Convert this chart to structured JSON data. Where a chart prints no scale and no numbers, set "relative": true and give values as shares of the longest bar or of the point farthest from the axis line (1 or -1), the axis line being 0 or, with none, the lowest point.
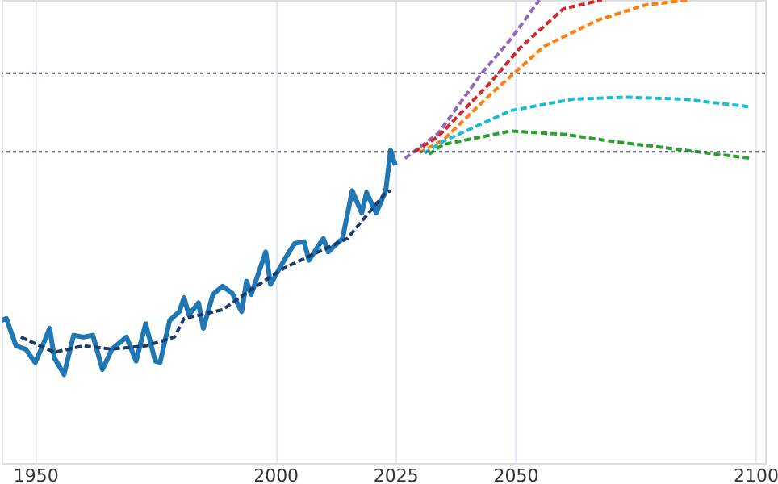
{
  "chart_data": {
    "type": "line",
    "relative": true,
    "xlim": [
      1943,
      2102
    ],
    "xticks": [
      1950,
      2000,
      2025,
      2050,
      2100
    ],
    "grid": true,
    "legend": false,
    "marker": "none",
    "series": [
      {
        "color": "#1f77b4",
        "line_style": "solid",
        "x": [
          1943,
          1944,
          1946,
          1948,
          1950,
          1952,
          1953,
          1954,
          1956,
          1958,
          1960,
          1962,
          1964,
          1966,
          1969,
          1971,
          1973,
          1975,
          1976,
          1978,
          1980,
          1981,
          1982,
          1984,
          1985,
          1987,
          1989,
          1991,
          1993,
          1994,
          1995,
          1998,
          1999,
          2002,
          2004,
          2006,
          2007,
          2010,
          2011,
          2014,
          2016,
          2018,
          2019,
          2021,
          2023,
          2024,
          2025
        ],
        "values": [
          0.308,
          0.312,
          0.253,
          0.246,
          0.217,
          0.265,
          0.291,
          0.227,
          0.191,
          0.276,
          0.272,
          0.276,
          0.202,
          0.246,
          0.272,
          0.22,
          0.301,
          0.22,
          0.217,
          0.308,
          0.327,
          0.357,
          0.32,
          0.346,
          0.291,
          0.364,
          0.382,
          0.367,
          0.327,
          0.393,
          0.364,
          0.456,
          0.386,
          0.441,
          0.474,
          0.478,
          0.438,
          0.485,
          0.456,
          0.485,
          0.588,
          0.54,
          0.584,
          0.54,
          0.588,
          0.676,
          0.643
        ]
      },
      {
        "color": "#1a3a6b",
        "line_style": "dashed",
        "x": [
          1947,
          1954,
          1960,
          1966,
          1973,
          1979,
          1981,
          1989,
          1995,
          2002,
          2009,
          2015,
          2023,
          2024
        ],
        "values": [
          0.272,
          0.239,
          0.253,
          0.246,
          0.253,
          0.272,
          0.312,
          0.331,
          0.375,
          0.422,
          0.456,
          0.485,
          0.584,
          0.588
        ]
      },
      {
        "color": "#9467bd",
        "line_style": "dashed",
        "x": [
          2027,
          2034,
          2043,
          2049,
          2055
        ],
        "values": [
          0.658,
          0.713,
          0.842,
          0.915,
          1
        ]
      },
      {
        "color": "#d62728",
        "line_style": "dashed",
        "x": [
          2029,
          2034,
          2045,
          2051,
          2060,
          2068
        ],
        "values": [
          0.672,
          0.706,
          0.824,
          0.897,
          0.981,
          1
        ]
      },
      {
        "color": "#ff7f0e",
        "line_style": "dashed",
        "x": [
          2030,
          2035,
          2045,
          2056,
          2067,
          2077,
          2086
        ],
        "values": [
          0.67,
          0.698,
          0.798,
          0.9,
          0.956,
          0.989,
          1
        ]
      },
      {
        "color": "#17becf",
        "line_style": "dashed",
        "x": [
          2031,
          2035,
          2049,
          2062,
          2073,
          2085,
          2099
        ],
        "values": [
          0.669,
          0.695,
          0.761,
          0.786,
          0.79,
          0.786,
          0.769
        ]
      },
      {
        "color": "#2ca02c",
        "line_style": "dashed",
        "x": [
          2032,
          2035,
          2049,
          2060,
          2070,
          2085,
          2099
        ],
        "values": [
          0.667,
          0.688,
          0.717,
          0.71,
          0.695,
          0.676,
          0.658
        ]
      }
    ],
    "ref_lines": [
      {
        "axis": "y",
        "value": 0.842,
        "color": "#3b4a6b",
        "line_style": "dotted"
      },
      {
        "axis": "y",
        "value": 0.672,
        "color": "#3b4a6b",
        "line_style": "dotted"
      }
    ]
  }
}
